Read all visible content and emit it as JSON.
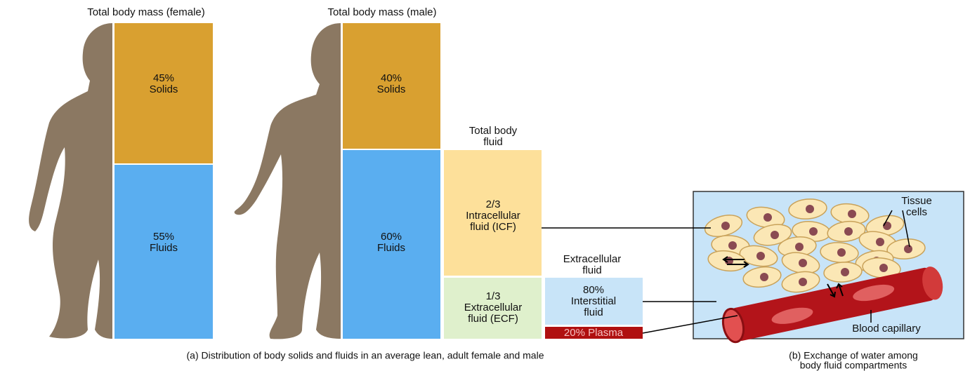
{
  "female": {
    "title": "Total body mass (female)",
    "solids": [
      "45%",
      "Solids"
    ],
    "fluids": [
      "55%",
      "Fluids"
    ]
  },
  "male": {
    "title": "Total body mass (male)",
    "solids": [
      "40%",
      "Solids"
    ],
    "fluids": [
      "60%",
      "Fluids"
    ]
  },
  "total_body_fluid": {
    "title": [
      "Total body",
      "fluid"
    ],
    "icf": [
      "2/3",
      "Intracellular",
      "fluid (ICF)"
    ],
    "ecf": [
      "1/3",
      "Extracellular",
      "fluid (ECF)"
    ]
  },
  "extracellular_fluid": {
    "title": [
      "Extracellular",
      "fluid"
    ],
    "interstitial": [
      "80%",
      "Interstitial",
      "fluid"
    ],
    "plasma": "20% Plasma"
  },
  "panel_b": {
    "tissue_cells": [
      "Tissue",
      "cells"
    ],
    "blood_capillary": "Blood capillary"
  },
  "captions": {
    "a": "(a) Distribution of body solids and fluids in an average lean, adult female and male",
    "b": [
      "(b) Exchange of water among",
      "body fluid compartments"
    ]
  }
}
